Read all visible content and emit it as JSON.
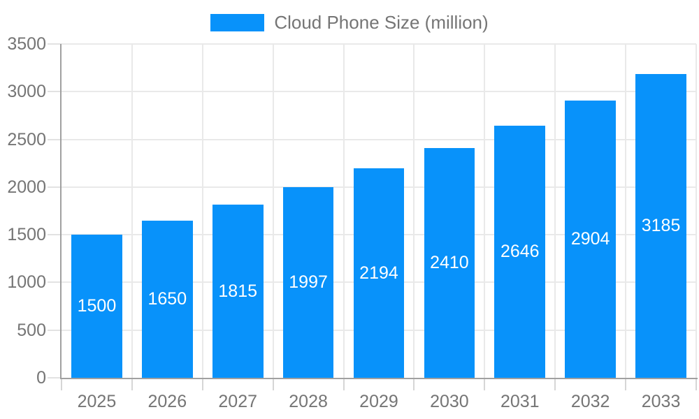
{
  "chart_data": {
    "type": "bar",
    "title": "",
    "legend": "Cloud Phone Size (million)",
    "legend_position": "top-center",
    "series": [
      {
        "name": "Cloud Phone Size (million)",
        "values": [
          1500,
          1650,
          1815,
          1997,
          2194,
          2410,
          2646,
          2904,
          3185
        ]
      }
    ],
    "categories": [
      "2025",
      "2026",
      "2027",
      "2028",
      "2029",
      "2030",
      "2031",
      "2032",
      "2033"
    ],
    "values": [
      1500,
      1650,
      1815,
      1997,
      2194,
      2410,
      2646,
      2904,
      3185
    ],
    "value_labels": [
      "1500",
      "1650",
      "1815",
      "1997",
      "2194",
      "2410",
      "2646",
      "2904",
      "3185"
    ],
    "xlabel": "",
    "ylabel": "",
    "ylim": [
      0,
      3500
    ],
    "yticks": [
      0,
      500,
      1000,
      1500,
      2000,
      2500,
      3000,
      3500
    ],
    "grid": "both",
    "bar_width_fraction": 0.72,
    "colors": {
      "bar": "#0892fa",
      "value_label": "#ffffff",
      "axis_line": "#a0a0a0",
      "gridline": "#e9e9e9",
      "tick": "#d6d6d6",
      "axis_label": "#757575",
      "legend_text": "#757575",
      "background": "#ffffff"
    }
  }
}
